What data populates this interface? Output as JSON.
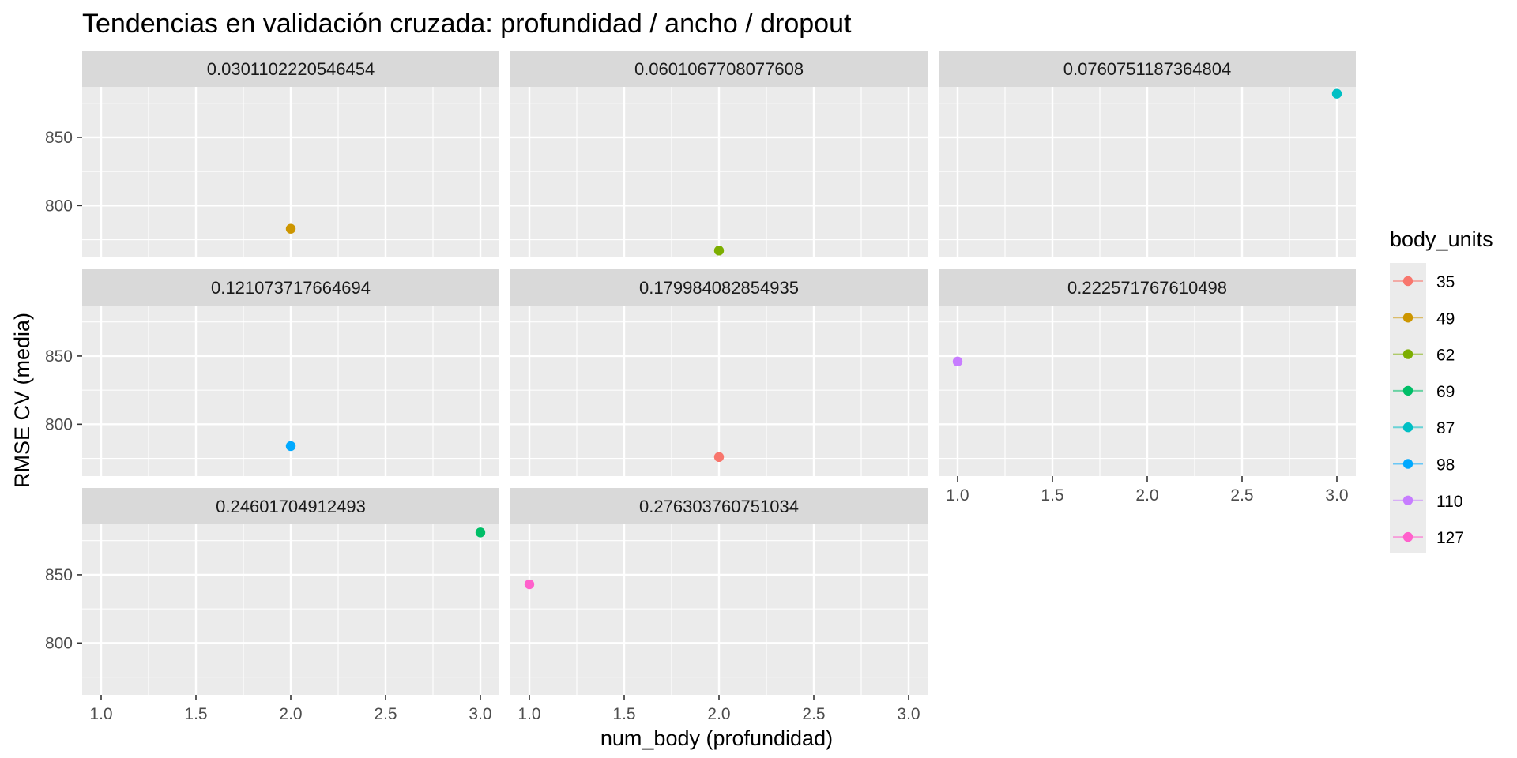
{
  "chart_data": {
    "type": "scatter",
    "title": "Tendencias en validación cruzada: profundidad / ancho / dropout",
    "xlabel": "num_body (profundidad)",
    "ylabel": "RMSE CV (media)",
    "xlim": [
      0.9,
      3.1
    ],
    "ylim": [
      762,
      887
    ],
    "x_ticks": [
      "1.0",
      "1.5",
      "2.0",
      "2.5",
      "3.0"
    ],
    "x_tick_values": [
      1.0,
      1.5,
      2.0,
      2.5,
      3.0
    ],
    "y_ticks": [
      "800",
      "850"
    ],
    "y_tick_values": [
      800,
      850
    ],
    "grid": true,
    "facet_by": "dropout",
    "facet_columns": 3,
    "legend": {
      "title": "body_units",
      "position": "right",
      "entries": [
        {
          "label": "35",
          "color": "#F8766D"
        },
        {
          "label": "49",
          "color": "#CD9600"
        },
        {
          "label": "62",
          "color": "#7CAE00"
        },
        {
          "label": "69",
          "color": "#00BE67"
        },
        {
          "label": "87",
          "color": "#00BFC4"
        },
        {
          "label": "98",
          "color": "#00A9FF"
        },
        {
          "label": "110",
          "color": "#C77CFF"
        },
        {
          "label": "127",
          "color": "#FF61CC"
        }
      ]
    },
    "panels": [
      {
        "label": "0.0301102220546454",
        "points": [
          {
            "x": 2,
            "y": 783,
            "body_units": "49"
          }
        ]
      },
      {
        "label": "0.0601067708077608",
        "points": [
          {
            "x": 2,
            "y": 767,
            "body_units": "62"
          }
        ]
      },
      {
        "label": "0.0760751187364804",
        "points": [
          {
            "x": 3,
            "y": 882,
            "body_units": "87"
          }
        ]
      },
      {
        "label": "0.121073717664694",
        "points": [
          {
            "x": 2,
            "y": 784,
            "body_units": "98"
          }
        ]
      },
      {
        "label": "0.179984082854935",
        "points": [
          {
            "x": 2,
            "y": 776,
            "body_units": "35"
          }
        ]
      },
      {
        "label": "0.222571767610498",
        "points": [
          {
            "x": 1,
            "y": 846,
            "body_units": "110"
          }
        ]
      },
      {
        "label": "0.24601704912493",
        "points": [
          {
            "x": 3,
            "y": 881,
            "body_units": "69"
          }
        ]
      },
      {
        "label": "0.276303760751034",
        "points": [
          {
            "x": 1,
            "y": 843,
            "body_units": "127"
          }
        ]
      }
    ]
  }
}
